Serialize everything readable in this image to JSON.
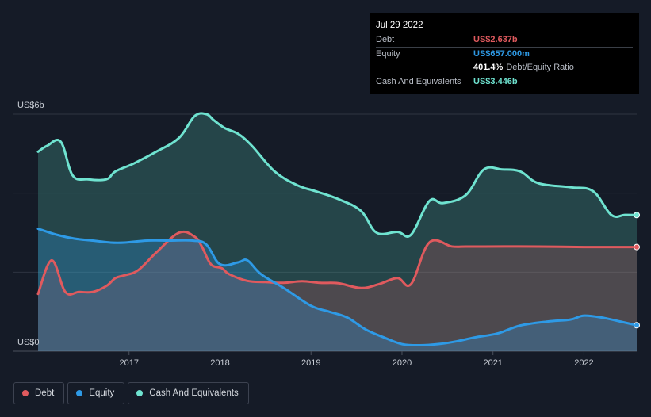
{
  "tooltip": {
    "date": "Jul 29 2022",
    "debt_label": "Debt",
    "debt_value": "US$2.637b",
    "equity_label": "Equity",
    "equity_value": "US$657.000m",
    "ratio_value": "401.4%",
    "ratio_label": "Debt/Equity Ratio",
    "cash_label": "Cash And Equivalents",
    "cash_value": "US$3.446b"
  },
  "legend": [
    {
      "label": "Debt",
      "color": "#e05a5e"
    },
    {
      "label": "Equity",
      "color": "#2e9ae6"
    },
    {
      "label": "Cash And Equivalents",
      "color": "#6fe3d0"
    }
  ],
  "chart_data": {
    "type": "area",
    "y_axis_labels": [
      "US$6b",
      "US$0"
    ],
    "x_ticks": [
      "2017",
      "2018",
      "2019",
      "2020",
      "2021",
      "2022"
    ],
    "x_tick_values": [
      2017,
      2018,
      2019,
      2020,
      2021,
      2022
    ],
    "ylim": [
      0,
      6
    ],
    "xlim": [
      2016.0,
      2022.58
    ],
    "grid": true,
    "series": [
      {
        "name": "Cash And Equivalents",
        "color": "#6fe3d0",
        "x": [
          2016.0,
          2016.1,
          2016.25,
          2016.38,
          2016.55,
          2016.75,
          2016.85,
          2017.05,
          2017.3,
          2017.55,
          2017.72,
          2017.85,
          2017.93,
          2018.05,
          2018.2,
          2018.35,
          2018.6,
          2018.85,
          2019.05,
          2019.3,
          2019.55,
          2019.72,
          2019.95,
          2020.1,
          2020.3,
          2020.45,
          2020.7,
          2020.9,
          2021.1,
          2021.3,
          2021.5,
          2021.85,
          2022.1,
          2022.3,
          2022.45,
          2022.58
        ],
        "values": [
          5.05,
          5.2,
          5.3,
          4.45,
          4.35,
          4.35,
          4.55,
          4.75,
          5.05,
          5.4,
          5.95,
          6.0,
          5.85,
          5.65,
          5.5,
          5.2,
          4.55,
          4.2,
          4.05,
          3.85,
          3.55,
          3.0,
          3.02,
          2.95,
          3.8,
          3.75,
          3.95,
          4.6,
          4.6,
          4.55,
          4.25,
          4.15,
          4.05,
          3.45,
          3.45,
          3.446
        ]
      },
      {
        "name": "Debt",
        "color": "#e05a5e",
        "x": [
          2016.0,
          2016.15,
          2016.3,
          2016.45,
          2016.6,
          2016.75,
          2016.85,
          2016.95,
          2017.1,
          2017.3,
          2017.55,
          2017.72,
          2017.8,
          2017.9,
          2018.02,
          2018.1,
          2018.3,
          2018.5,
          2018.7,
          2018.9,
          2019.1,
          2019.3,
          2019.55,
          2019.75,
          2019.95,
          2020.1,
          2020.3,
          2020.55,
          2020.7,
          2020.9,
          2021.5,
          2022.0,
          2022.58
        ],
        "values": [
          1.45,
          2.3,
          1.5,
          1.5,
          1.5,
          1.65,
          1.85,
          1.92,
          2.05,
          2.5,
          3.0,
          2.9,
          2.65,
          2.2,
          2.1,
          1.95,
          1.78,
          1.75,
          1.73,
          1.77,
          1.73,
          1.72,
          1.6,
          1.7,
          1.85,
          1.7,
          2.75,
          2.65,
          2.65,
          2.65,
          2.65,
          2.637,
          2.637
        ]
      },
      {
        "name": "Equity",
        "color": "#2e9ae6",
        "x": [
          2016.0,
          2016.2,
          2016.4,
          2016.6,
          2016.8,
          2016.95,
          2017.2,
          2017.45,
          2017.7,
          2017.85,
          2018.0,
          2018.2,
          2018.3,
          2018.45,
          2018.7,
          2019.0,
          2019.2,
          2019.4,
          2019.6,
          2019.8,
          2020.0,
          2020.2,
          2020.4,
          2020.6,
          2020.8,
          2021.05,
          2021.3,
          2021.6,
          2021.85,
          2022.0,
          2022.2,
          2022.4,
          2022.58
        ],
        "values": [
          3.1,
          2.95,
          2.85,
          2.8,
          2.75,
          2.75,
          2.8,
          2.8,
          2.8,
          2.7,
          2.2,
          2.25,
          2.3,
          1.95,
          1.6,
          1.15,
          1.0,
          0.85,
          0.55,
          0.35,
          0.18,
          0.15,
          0.18,
          0.25,
          0.35,
          0.45,
          0.65,
          0.75,
          0.8,
          0.9,
          0.85,
          0.75,
          0.657
        ]
      }
    ]
  }
}
